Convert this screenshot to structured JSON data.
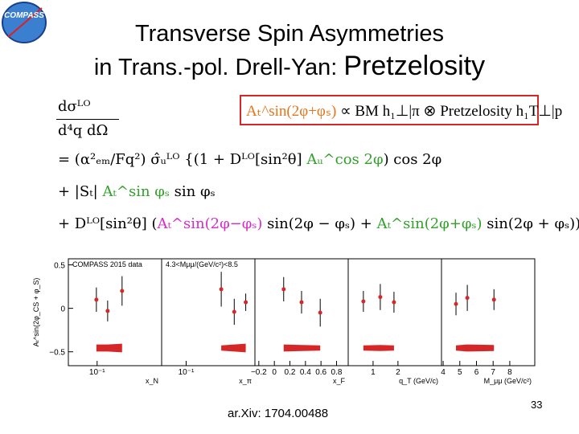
{
  "logo": "COMPASS",
  "title": {
    "line1": "Transverse Spin Asymmetries",
    "line2a": "in Trans.-pol. Drell-Yan: ",
    "line2b": "Pretzelosity"
  },
  "formula_box": {
    "segments": [
      {
        "text": "Aₜ^sin(2φ+φₛ)",
        "color": "#e8741a"
      },
      {
        "text": " ∝ BM h₁⊥|π ⊗ Pretzelosity h₁T⊥|p"
      }
    ]
  },
  "formula": {
    "lhs_num": "dσᴸᴼ",
    "lhs_den": "d⁴q dΩ",
    "lines": [
      [
        {
          "text": "= (α²ₑₘ/Fq²) σ̂ᵤᴸᴼ {(1 + Dᴸᴼ[sin²θ] "
        },
        {
          "text": "Aᵤ^cos 2φ",
          "color": "#33a02c"
        },
        {
          "text": ") cos 2φ"
        }
      ],
      [
        {
          "text": "+ |Sₜ| "
        },
        {
          "text": "Aₜ^sin φₛ",
          "color": "#33a02c"
        },
        {
          "text": " sin φₛ"
        }
      ],
      [
        {
          "text": "+ Dᴸᴼ[sin²θ] ("
        },
        {
          "text": "Aₜ^sin(2φ−φₛ)",
          "color": "#d62dc8"
        },
        {
          "text": " sin(2φ − φₛ) + "
        },
        {
          "text": "Aₜ^sin(2φ+φₛ)",
          "color": "#33a02c"
        },
        {
          "text": " sin(2φ + φₛ))}"
        }
      ]
    ]
  },
  "chart_data": [
    {
      "type": "scatter",
      "title": "COMPASS 2015 data",
      "y_label": "Aₜ^sin(2φ_CS + φ_S)",
      "x_label": "x_N",
      "log": true,
      "xlim": [
        0.045,
        0.6
      ],
      "xticks": [
        {
          "value": 0.1,
          "label": "10⁻¹"
        }
      ],
      "ylim": [
        -0.66,
        0.57
      ],
      "yticks": [
        0.5,
        0,
        {
          "value": -0.5,
          "label": "−0.5"
        }
      ],
      "color": "#d62728",
      "x": [
        0.098,
        0.134,
        0.2
      ],
      "values": [
        0.1,
        -0.03,
        0.2
      ],
      "errors": [
        0.14,
        0.12,
        0.17
      ],
      "sys": [
        0.04,
        0.04,
        0.05
      ]
    },
    {
      "type": "scatter",
      "title": "4.3<Mμμ/(GeV/c²)<8.5",
      "x_label": "x_π",
      "log": true,
      "xlim": [
        0.05,
        0.7
      ],
      "xticks": [
        {
          "value": 0.1,
          "label": "10⁻¹"
        }
      ],
      "ylim": [
        -0.66,
        0.57
      ],
      "color": "#d62728",
      "x": [
        0.27,
        0.39,
        0.54
      ],
      "values": [
        0.22,
        -0.04,
        0.07
      ],
      "errors": [
        0.2,
        0.15,
        0.1
      ],
      "sys": [
        0.03,
        0.04,
        0.05
      ]
    },
    {
      "type": "scatter",
      "x_label": "x_F",
      "xlim": [
        -0.25,
        0.95
      ],
      "xticks": [
        {
          "value": -0.2,
          "label": "−0.2"
        },
        0,
        0.2,
        0.4,
        0.6,
        0.8
      ],
      "ylim": [
        -0.66,
        0.57
      ],
      "color": "#d62728",
      "x": [
        0.12,
        0.35,
        0.59
      ],
      "values": [
        0.22,
        0.07,
        -0.05
      ],
      "errors": [
        0.14,
        0.13,
        0.16
      ],
      "sys": [
        0.04,
        0.035,
        0.03
      ]
    },
    {
      "type": "scatter",
      "x_label": "q_T (GeV/c)",
      "xlim": [
        0,
        3.75
      ],
      "xticks": [
        1,
        2
      ],
      "ylim": [
        -0.66,
        0.57
      ],
      "color": "#d62728",
      "x": [
        0.61,
        1.29,
        1.84
      ],
      "values": [
        0.08,
        0.13,
        0.07
      ],
      "errors": [
        0.12,
        0.15,
        0.12
      ],
      "sys": [
        0.03,
        0.035,
        0.03
      ]
    },
    {
      "type": "scatter",
      "x_label": "M_μμ (GeV/c²)",
      "xlim": [
        3.9,
        9.5
      ],
      "xticks": [
        4,
        5,
        6,
        7,
        8
      ],
      "ylim": [
        -0.66,
        0.57
      ],
      "color": "#d62728",
      "x": [
        4.77,
        5.45,
        7.05
      ],
      "values": [
        0.05,
        0.12,
        0.1
      ],
      "errors": [
        0.13,
        0.15,
        0.12
      ],
      "sys": [
        0.03,
        0.04,
        0.035
      ]
    }
  ],
  "footer": {
    "reference": "ar.Xiv: 1704.00488",
    "page_number": "33"
  }
}
